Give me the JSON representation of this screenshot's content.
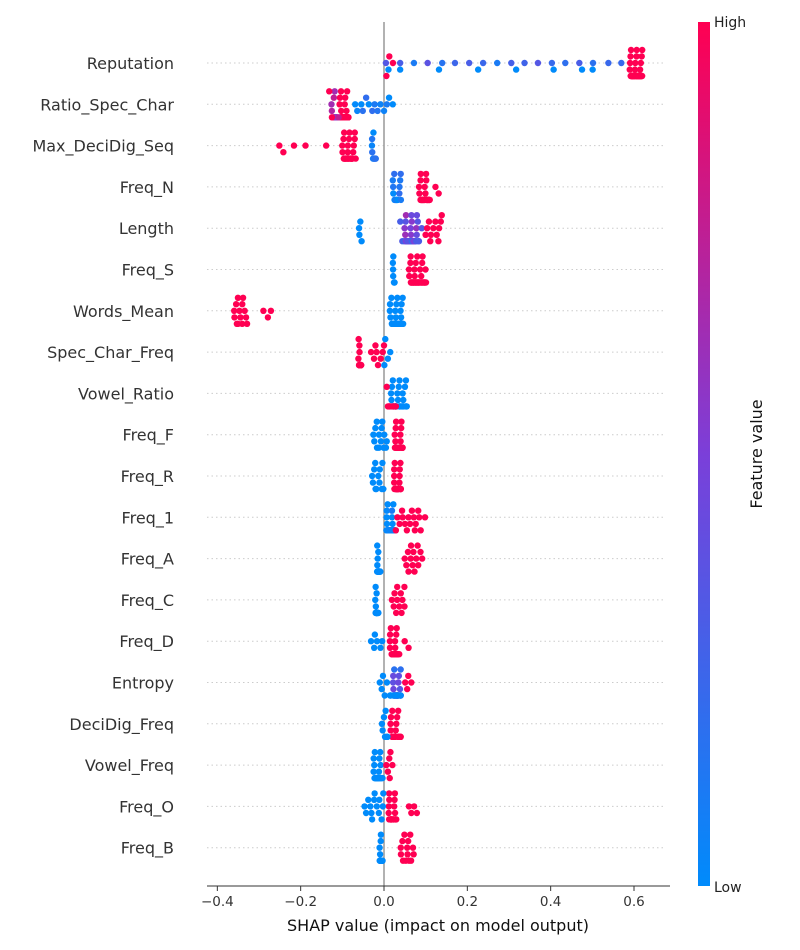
{
  "chart_data": {
    "type": "scatter",
    "subtype": "shap-beeswarm",
    "xlabel": "SHAP value (impact on model output)",
    "xlim": [
      -0.42,
      0.68
    ],
    "xticks": [
      -0.4,
      -0.2,
      0.0,
      0.2,
      0.4,
      0.6
    ],
    "xtick_labels": [
      "−0.4",
      "−0.2",
      "0.0",
      "0.2",
      "0.4",
      "0.6"
    ],
    "zero_line": true,
    "colorbar": {
      "label": "Feature value",
      "high_label": "High",
      "low_label": "Low",
      "low_color": "#008bfb",
      "mid_color": "#7b3fd9",
      "high_color": "#ff0052"
    },
    "features": [
      {
        "name": "Reputation",
        "clusters": [
          [
            0.59,
            0.62,
            1.0,
            55
          ],
          [
            0.57,
            0.005,
            0.25,
            18
          ],
          [
            0.5,
            0.04,
            0.0,
            6
          ],
          [
            0.475,
            0.01,
            0.0,
            2
          ],
          [
            0.02,
            0.005,
            1.0,
            3
          ]
        ]
      },
      {
        "name": "Ratio_Spec_Char",
        "clusters": [
          [
            -0.105,
            -0.085,
            1.0,
            40
          ],
          [
            -0.125,
            -0.11,
            0.7,
            12
          ],
          [
            -0.07,
            0.02,
            0.05,
            14
          ],
          [
            -0.13,
            -0.125,
            1.0,
            2
          ]
        ]
      },
      {
        "name": "Max_DeciDig_Seq",
        "clusters": [
          [
            -0.1,
            -0.07,
            1.0,
            30
          ],
          [
            -0.03,
            -0.02,
            0.05,
            10
          ],
          [
            -0.25,
            -0.24,
            1.0,
            2
          ],
          [
            -0.215,
            -0.19,
            1.0,
            2
          ],
          [
            -0.14,
            -0.14,
            1.0,
            1
          ]
        ]
      },
      {
        "name": "Freq_N",
        "clusters": [
          [
            0.085,
            0.11,
            1.0,
            40
          ],
          [
            0.02,
            0.04,
            0.05,
            18
          ],
          [
            0.125,
            0.13,
            1.0,
            2
          ]
        ]
      },
      {
        "name": "Length",
        "clusters": [
          [
            0.05,
            0.08,
            0.5,
            30
          ],
          [
            0.04,
            0.09,
            0.35,
            12
          ],
          [
            0.1,
            0.14,
            1.0,
            12
          ],
          [
            -0.06,
            -0.055,
            0.0,
            4
          ]
        ]
      },
      {
        "name": "Freq_S",
        "clusters": [
          [
            0.06,
            0.1,
            1.0,
            40
          ],
          [
            0.02,
            0.025,
            0.0,
            6
          ]
        ]
      },
      {
        "name": "Words_Mean",
        "clusters": [
          [
            0.015,
            0.045,
            0.0,
            45
          ],
          [
            -0.36,
            -0.33,
            1.0,
            14
          ],
          [
            -0.29,
            -0.27,
            1.0,
            3
          ]
        ]
      },
      {
        "name": "Spec_Char_Freq",
        "clusters": [
          [
            -0.06,
            -0.055,
            1.0,
            36
          ],
          [
            -0.03,
            0.0,
            1.0,
            8
          ],
          [
            0.0,
            0.015,
            0.0,
            4
          ]
        ]
      },
      {
        "name": "Vowel_Ratio",
        "clusters": [
          [
            0.015,
            0.055,
            0.0,
            30
          ],
          [
            0.005,
            0.03,
            1.0,
            10
          ]
        ]
      },
      {
        "name": "Freq_F",
        "clusters": [
          [
            0.025,
            0.045,
            1.0,
            28
          ],
          [
            -0.025,
            0.005,
            0.0,
            14
          ]
        ]
      },
      {
        "name": "Freq_R",
        "clusters": [
          [
            0.025,
            0.04,
            1.0,
            28
          ],
          [
            -0.03,
            0.0,
            0.0,
            12
          ]
        ]
      },
      {
        "name": "Freq_1",
        "clusters": [
          [
            0.005,
            0.025,
            0.05,
            28
          ],
          [
            0.03,
            0.09,
            1.0,
            16
          ],
          [
            0.1,
            0.1,
            1.0,
            1
          ]
        ]
      },
      {
        "name": "Freq_A",
        "clusters": [
          [
            -0.015,
            -0.01,
            0.0,
            28
          ],
          [
            0.05,
            0.09,
            1.0,
            14
          ]
        ]
      },
      {
        "name": "Freq_C",
        "clusters": [
          [
            -0.02,
            -0.015,
            0.0,
            28
          ],
          [
            0.02,
            0.05,
            1.0,
            12
          ]
        ]
      },
      {
        "name": "Freq_D",
        "clusters": [
          [
            0.015,
            0.035,
            1.0,
            28
          ],
          [
            -0.03,
            -0.005,
            0.0,
            6
          ],
          [
            0.05,
            0.06,
            1.0,
            2
          ]
        ]
      },
      {
        "name": "Entropy",
        "clusters": [
          [
            0.02,
            0.04,
            0.3,
            24
          ],
          [
            -0.01,
            0.04,
            0.0,
            12
          ],
          [
            0.05,
            0.065,
            1.0,
            4
          ]
        ]
      },
      {
        "name": "DeciDig_Freq",
        "clusters": [
          [
            0.015,
            0.04,
            1.0,
            24
          ],
          [
            -0.005,
            0.01,
            0.0,
            8
          ]
        ]
      },
      {
        "name": "Vowel_Freq",
        "clusters": [
          [
            -0.025,
            -0.005,
            0.0,
            30
          ],
          [
            0.005,
            0.02,
            1.0,
            6
          ]
        ]
      },
      {
        "name": "Freq_O",
        "clusters": [
          [
            0.01,
            0.03,
            1.0,
            24
          ],
          [
            -0.045,
            0.0,
            0.0,
            14
          ],
          [
            0.06,
            0.08,
            1.0,
            4
          ]
        ]
      },
      {
        "name": "Freq_B",
        "clusters": [
          [
            -0.01,
            -0.005,
            0.0,
            28
          ],
          [
            0.04,
            0.07,
            1.0,
            14
          ]
        ]
      }
    ]
  }
}
